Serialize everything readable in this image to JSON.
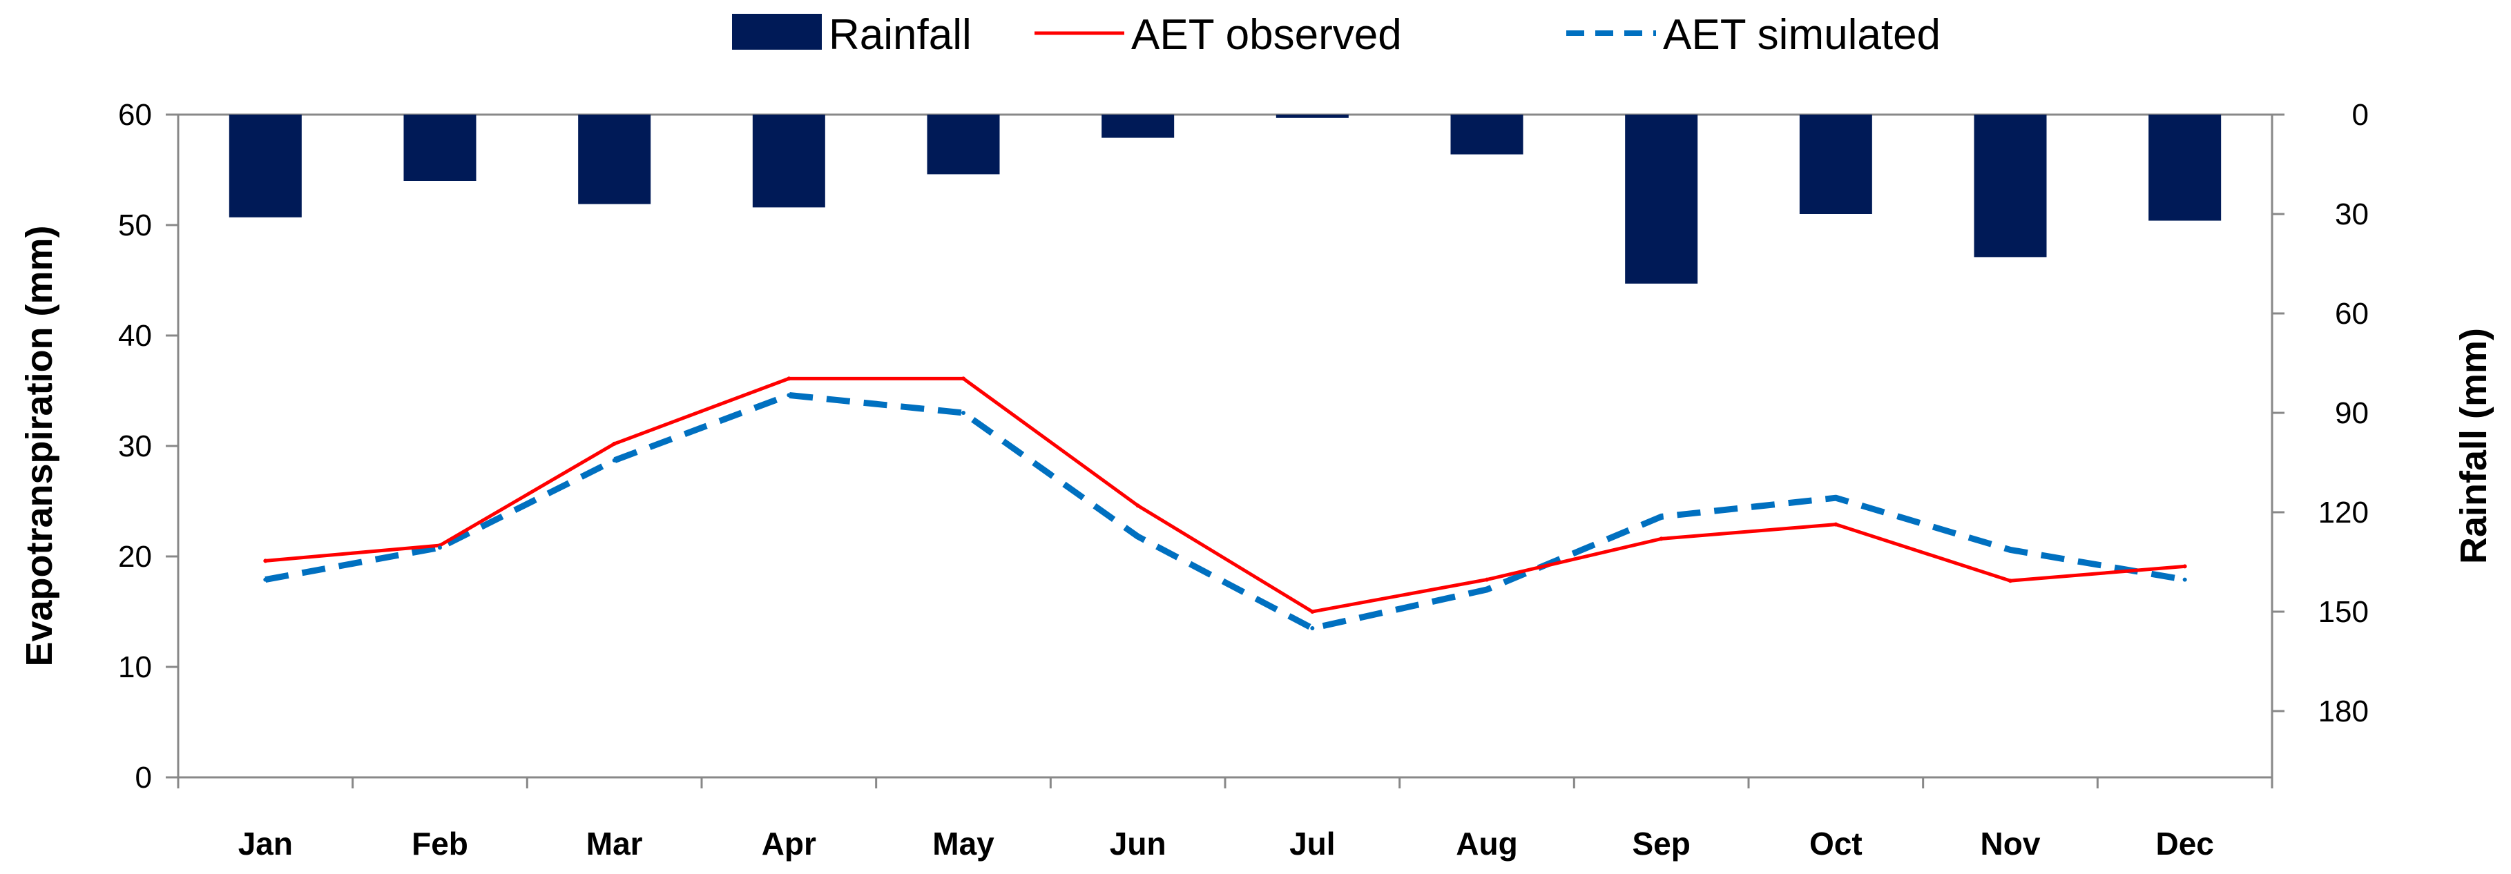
{
  "chart_data": {
    "type": "bar+line",
    "categories": [
      "Jan",
      "Feb",
      "Mar",
      "Apr",
      "May",
      "Jun",
      "Jul",
      "Aug",
      "Sep",
      "Oct",
      "Nov",
      "Dec"
    ],
    "series": [
      {
        "name": "Rainfall",
        "kind": "bar",
        "axis": "right",
        "color": "#001a57",
        "values": [
          31,
          20,
          27,
          28,
          18,
          7,
          1,
          12,
          51,
          30,
          43,
          32
        ]
      },
      {
        "name": "AET observed",
        "kind": "line",
        "axis": "left",
        "color": "#ff0000",
        "dash": "solid",
        "values": [
          19.6,
          21.0,
          30.2,
          36.1,
          36.1,
          24.6,
          15.0,
          17.9,
          21.6,
          22.9,
          17.8,
          19.1
        ]
      },
      {
        "name": "AET simulated",
        "kind": "line",
        "axis": "left",
        "color": "#0070c0",
        "dash": "dashed",
        "values": [
          17.9,
          20.8,
          28.7,
          34.6,
          33.0,
          21.8,
          13.5,
          17.0,
          23.6,
          25.3,
          20.6,
          17.9
        ]
      }
    ],
    "ylabel_left": "Evapotranspiration (mm)",
    "ylabel_right": "Rainfall  (mm)",
    "ylim_left": [
      0,
      60
    ],
    "yticks_left": [
      "0",
      "10",
      "20",
      "30",
      "40",
      "50",
      "60"
    ],
    "ylim_right": [
      0,
      200
    ],
    "right_axis_inverted": true,
    "yticks_right": [
      "0",
      "30",
      "60",
      "90",
      "120",
      "150",
      "180"
    ],
    "legend_position": "top-center",
    "grid": false
  }
}
